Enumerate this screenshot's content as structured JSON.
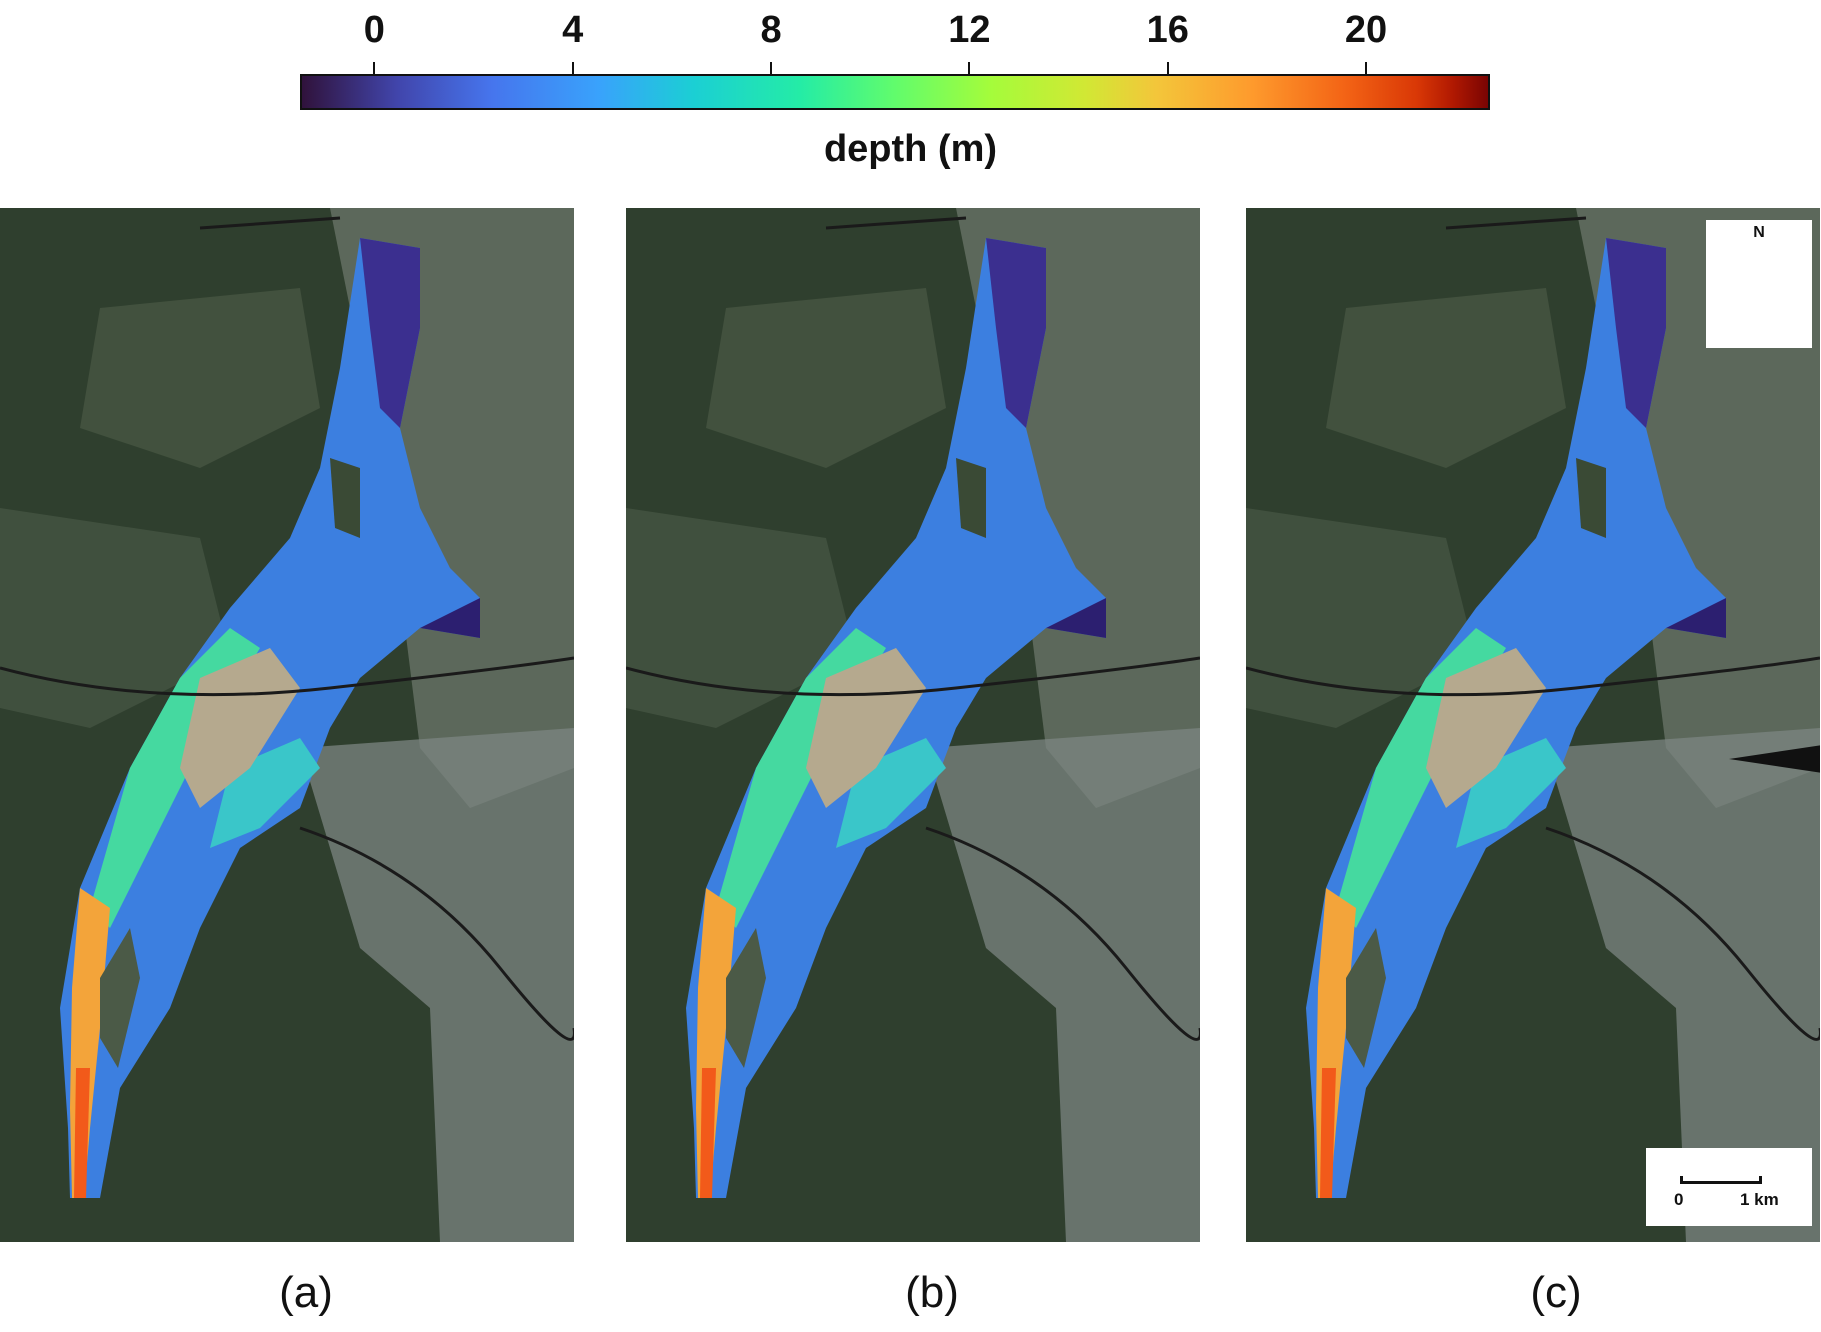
{
  "colorbar": {
    "ticks": [
      "0",
      "4",
      "8",
      "12",
      "16",
      "20"
    ],
    "min": -1.5,
    "max": 22.5,
    "title": "depth (m)"
  },
  "panels": [
    {
      "label": "(a)"
    },
    {
      "label": "(b)"
    },
    {
      "label": "(c)"
    }
  ],
  "north_arrow": {
    "letter": "N",
    "icon": "compass-star-icon"
  },
  "scale_bar": {
    "start": "0",
    "end": "1 km"
  },
  "colors": {
    "land": "#3a4a35",
    "urban": "#8d9390",
    "shallow": "#3b2f8f",
    "mid": "#3c8fe8",
    "green": "#45d9a0",
    "deep": "#f25a1a"
  }
}
